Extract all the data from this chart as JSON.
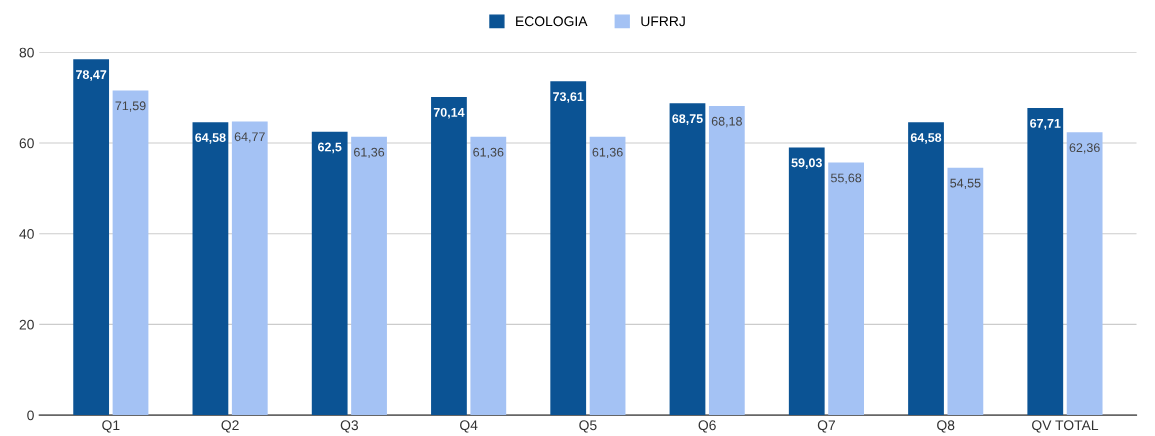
{
  "chart_data": {
    "type": "bar",
    "categories": [
      "Q1",
      "Q2",
      "Q3",
      "Q4",
      "Q5",
      "Q6",
      "Q7",
      "Q8",
      "QV TOTAL"
    ],
    "series": [
      {
        "name": "ECOLOGIA",
        "color": "#0b5394",
        "values": [
          78.47,
          64.58,
          62.5,
          70.14,
          73.61,
          68.75,
          59.03,
          64.58,
          67.71
        ],
        "value_labels": [
          "78,47",
          "64,58",
          "62,5",
          "70,14",
          "73,61",
          "68,75",
          "59,03",
          "64,58",
          "67,71"
        ]
      },
      {
        "name": "UFRRJ",
        "color": "#a4c2f4",
        "values": [
          71.59,
          64.77,
          61.36,
          61.36,
          61.36,
          68.18,
          55.68,
          54.55,
          62.36
        ],
        "value_labels": [
          "71,59",
          "64,77",
          "61,36",
          "61,36",
          "61,36",
          "68,18",
          "55,68",
          "54,55",
          "62,36"
        ]
      }
    ],
    "ylim": [
      0,
      80
    ],
    "yticks": [
      0,
      20,
      40,
      60,
      80
    ],
    "grid": "y",
    "legend": "top"
  }
}
